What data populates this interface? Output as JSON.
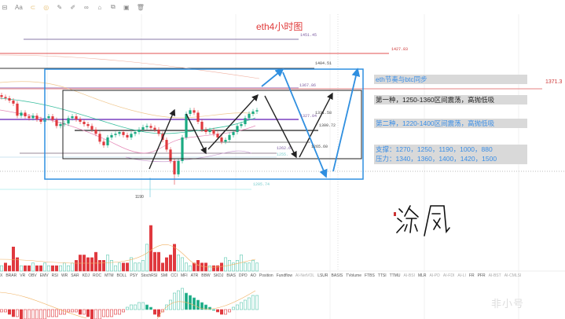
{
  "toolbar": {
    "items": [
      {
        "icon": "layout-icon",
        "label": ""
      },
      {
        "icon": "text-icon",
        "label": "Aa"
      },
      {
        "icon": "magnet-icon",
        "label": ""
      },
      {
        "icon": "lock-icon",
        "label": ""
      },
      {
        "icon": "pen-icon",
        "label": ""
      },
      {
        "icon": "brush-icon",
        "label": ""
      },
      {
        "icon": "link-icon",
        "label": ""
      },
      {
        "icon": "hide-icon",
        "label": ""
      },
      {
        "icon": "copy-icon",
        "label": ""
      },
      {
        "icon": "screenshot-icon",
        "label": ""
      },
      {
        "icon": "trash-icon",
        "label": ""
      }
    ]
  },
  "title": "eth4小时图",
  "notes": [
    {
      "text": "eth节奏与btc同步",
      "color": "#3a8ee6"
    },
    {
      "text": "第一种，1250-1360区间震荡，高抛低吸",
      "color": "#222222"
    },
    {
      "text": "第二种，1220-1400区间震荡，高抛低吸",
      "color": "#3a8ee6"
    },
    {
      "text": "支撑：1270，1250，1190，1000，880",
      "color": "#3a8ee6"
    },
    {
      "text": "压力：1340，1360，1400，1420，1500",
      "color": "#3a8ee6"
    }
  ],
  "levels": {
    "l1451": "1451.45",
    "l1427": "1427.83",
    "l1404": "1404.51",
    "l1367": "1367.86",
    "l1371": "1371.3",
    "l1327": "1327.04",
    "l1331": "1331.58",
    "l1300": "1300.72",
    "l1265": "1265.60",
    "l1262": "1262.6",
    "l1255": "1255.",
    "l1205": "1205.74",
    "low": "1190"
  },
  "colors": {
    "up": "#1aaa82",
    "down": "#e0393e",
    "blue": "#2f8fe0",
    "red": "#e0393e"
  },
  "candles_close": [
    1347,
    1345,
    1341,
    1336,
    1316,
    1321,
    1315,
    1312,
    1316,
    1310,
    1306,
    1312,
    1315,
    1309,
    1299,
    1302,
    1303,
    1312,
    1315,
    1310,
    1306,
    1302,
    1299,
    1293,
    1286,
    1273,
    1267,
    1280,
    1284,
    1286,
    1289,
    1284,
    1280,
    1286,
    1289,
    1293,
    1297,
    1299,
    1296,
    1293,
    1286,
    1276,
    1260,
    1241,
    1219,
    1241,
    1280,
    1319,
    1325,
    1321,
    1306,
    1293,
    1289,
    1292,
    1286,
    1280,
    1273,
    1276,
    1284,
    1289,
    1299,
    1302,
    1312,
    1319,
    1323,
    1325
  ],
  "volume": [
    2,
    3,
    2,
    9,
    5,
    2,
    2,
    2,
    3,
    2,
    2,
    3,
    2,
    2,
    2,
    2,
    3,
    2,
    3,
    4,
    6,
    6,
    5,
    5,
    7,
    4,
    4,
    6,
    4,
    2,
    3,
    3,
    3,
    5,
    3,
    3,
    4,
    10,
    17,
    7,
    7,
    3,
    5,
    6,
    10,
    6,
    5,
    3,
    2,
    3,
    4,
    3,
    3,
    2,
    2,
    2,
    3,
    5,
    4,
    3,
    4,
    6,
    3,
    3,
    4,
    3
  ],
  "macd": [
    -1,
    -1,
    -2,
    -3,
    -3,
    -4,
    -4,
    -4,
    -4,
    -4,
    -4,
    -4,
    -3,
    -3,
    -3,
    -2,
    -2,
    -1,
    -1,
    -1,
    -2,
    -2,
    -3,
    -4,
    -4,
    -4,
    -3,
    -3,
    -3,
    -2,
    -2,
    -1,
    1,
    2,
    2,
    3,
    3,
    2,
    1,
    -2,
    -3,
    -1,
    2,
    4,
    7,
    8,
    9,
    7,
    6,
    5,
    4,
    3,
    2,
    1,
    0,
    -1,
    -2,
    -2,
    -1,
    1,
    2,
    3,
    4,
    5,
    6,
    6
  ],
  "indicator_tabs": [
    "X",
    "BRAR",
    "VR",
    "OBV",
    "EMV",
    "RSI",
    "WR",
    "SAR",
    "KDJ",
    "ROC",
    "MTM",
    "BOLL",
    "PSY",
    "StochRSI",
    "SMI",
    "CCI",
    "MFI",
    "ATR",
    "BBW",
    "SKDJ",
    "BIAS",
    "DPO",
    "AO",
    "Position",
    "Fundflow",
    "AI-NetVOL",
    "LSUR",
    "BASIS",
    "TVolume",
    "FTBS",
    "TTSI",
    "TTMU",
    "AI-BSI",
    "MLR",
    "AI-PD",
    "AI-FDI",
    "AI-LI",
    "FR",
    "PFR",
    "AI-BST",
    "AI-CMLSI"
  ],
  "indicator_tabs_dim": [
    "AI-NetVOL",
    "AI-BSI",
    "AI-PD",
    "AI-FDI",
    "AI-LI",
    "AI-BST",
    "AI-CMLSI"
  ],
  "watermark": "非小号",
  "signature": "冷风"
}
